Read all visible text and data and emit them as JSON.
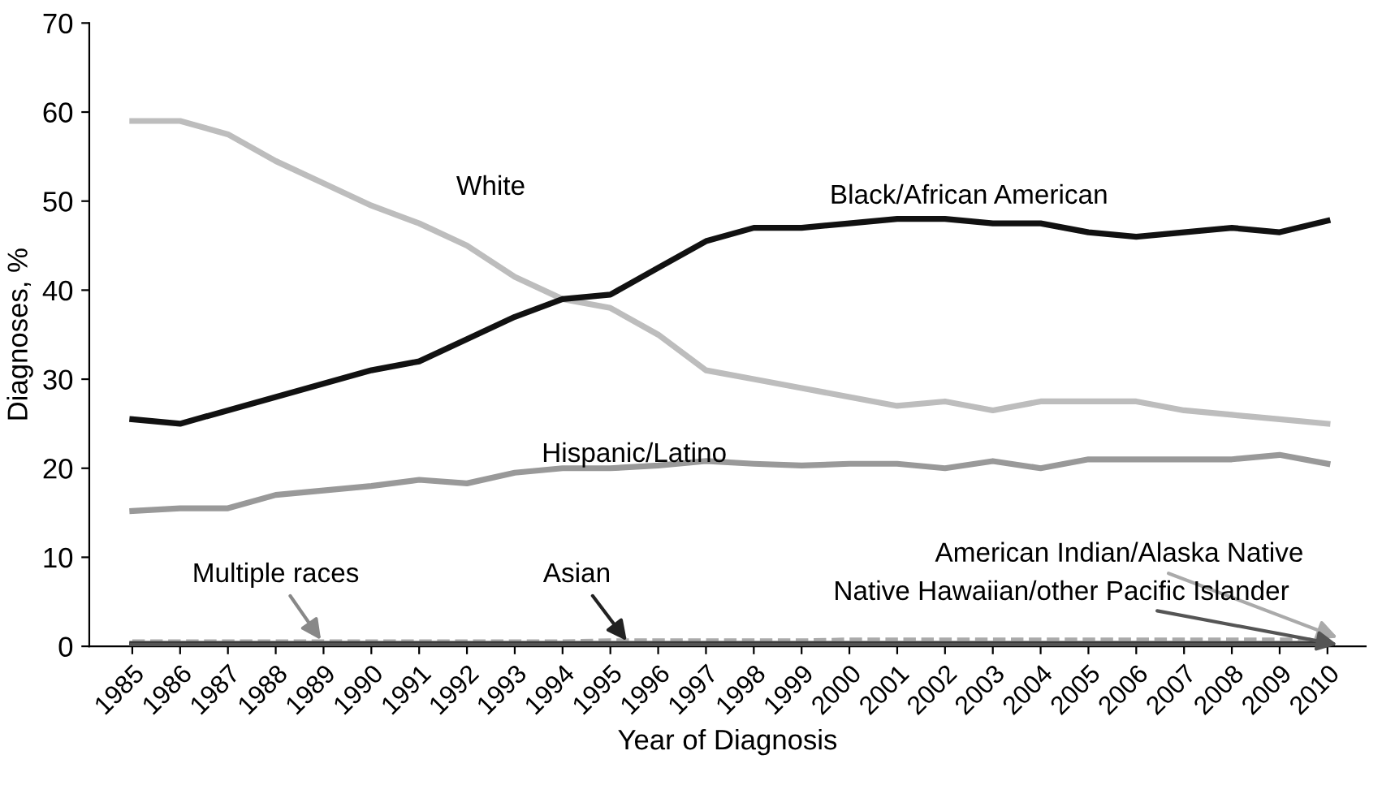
{
  "chart_data": {
    "type": "line",
    "xlabel": "Year of Diagnosis",
    "ylabel": "Diagnoses, %",
    "categories": [
      "1985",
      "1986",
      "1987",
      "1988",
      "1989",
      "1990",
      "1991",
      "1992",
      "1993",
      "1994",
      "1995",
      "1996",
      "1997",
      "1998",
      "1999",
      "2000",
      "2001",
      "2002",
      "2003",
      "2004",
      "2005",
      "2006",
      "2007",
      "2008",
      "2009",
      "2010"
    ],
    "ylim": [
      0,
      70
    ],
    "yticks": [
      0,
      10,
      20,
      30,
      40,
      50,
      60,
      70
    ],
    "grid": false,
    "legend": false,
    "marker": "none",
    "series": [
      {
        "name": "White",
        "color": "#bdbdbd",
        "line_style": "solid",
        "values": [
          59,
          59,
          57.5,
          54.5,
          52,
          49.5,
          47.5,
          45,
          41.5,
          39,
          38,
          35,
          31,
          30,
          29,
          28,
          27,
          27.5,
          26.5,
          27.5,
          27.5,
          27.5,
          26.5,
          26,
          25.5,
          25
        ]
      },
      {
        "name": "Black/African American",
        "color": "#111111",
        "line_style": "solid",
        "values": [
          25.5,
          25,
          26.5,
          28,
          29.5,
          31,
          32,
          34.5,
          37,
          39,
          39.5,
          42.5,
          45.5,
          47,
          47,
          47.5,
          48,
          48,
          47.5,
          47.5,
          46.5,
          46,
          46.5,
          47,
          46.5,
          47.8
        ]
      },
      {
        "name": "Hispanic/Latino",
        "color": "#999999",
        "line_style": "solid",
        "values": [
          15.2,
          15.5,
          15.5,
          17,
          17.5,
          18,
          18.7,
          18.3,
          19.5,
          20,
          20,
          20.3,
          20.8,
          20.5,
          20.3,
          20.5,
          20.5,
          20,
          20.8,
          20,
          21,
          21,
          21,
          21,
          21.5,
          20.5
        ]
      },
      {
        "name": "American Indian/Alaska Native",
        "color": "#aaaaaa",
        "line_style": "dashed",
        "values": [
          0.6,
          0.6,
          0.6,
          0.6,
          0.6,
          0.6,
          0.6,
          0.6,
          0.6,
          0.6,
          0.7,
          0.7,
          0.7,
          0.7,
          0.7,
          0.8,
          0.8,
          0.8,
          0.8,
          0.8,
          0.8,
          0.8,
          0.8,
          0.8,
          0.8,
          0.8
        ]
      },
      {
        "name": "Multiple races",
        "color": "#888888",
        "line_style": "solid",
        "values": [
          0.3,
          0.3,
          0.3,
          0.3,
          0.3,
          0.3,
          0.3,
          0.3,
          0.3,
          0.3,
          0.3,
          0.3,
          0.3,
          0.3,
          0.3,
          0.3,
          0.3,
          0.3,
          0.3,
          0.3,
          0.3,
          0.3,
          0.3,
          0.3,
          0.3,
          0.3
        ]
      },
      {
        "name": "Asian",
        "color": "#222222",
        "line_style": "solid",
        "values": [
          0.2,
          0.2,
          0.2,
          0.2,
          0.2,
          0.2,
          0.2,
          0.2,
          0.2,
          0.2,
          0.2,
          0.2,
          0.2,
          0.2,
          0.2,
          0.2,
          0.2,
          0.2,
          0.2,
          0.2,
          0.2,
          0.2,
          0.2,
          0.2,
          0.2,
          0.2
        ]
      },
      {
        "name": "Native Hawaiian/other Pacific Islander",
        "color": "#555555",
        "line_style": "solid",
        "values": [
          0.1,
          0.1,
          0.1,
          0.1,
          0.1,
          0.1,
          0.1,
          0.1,
          0.1,
          0.1,
          0.1,
          0.1,
          0.1,
          0.1,
          0.1,
          0.1,
          0.1,
          0.1,
          0.1,
          0.1,
          0.1,
          0.1,
          0.1,
          0.1,
          0.1,
          0.1
        ]
      }
    ]
  }
}
